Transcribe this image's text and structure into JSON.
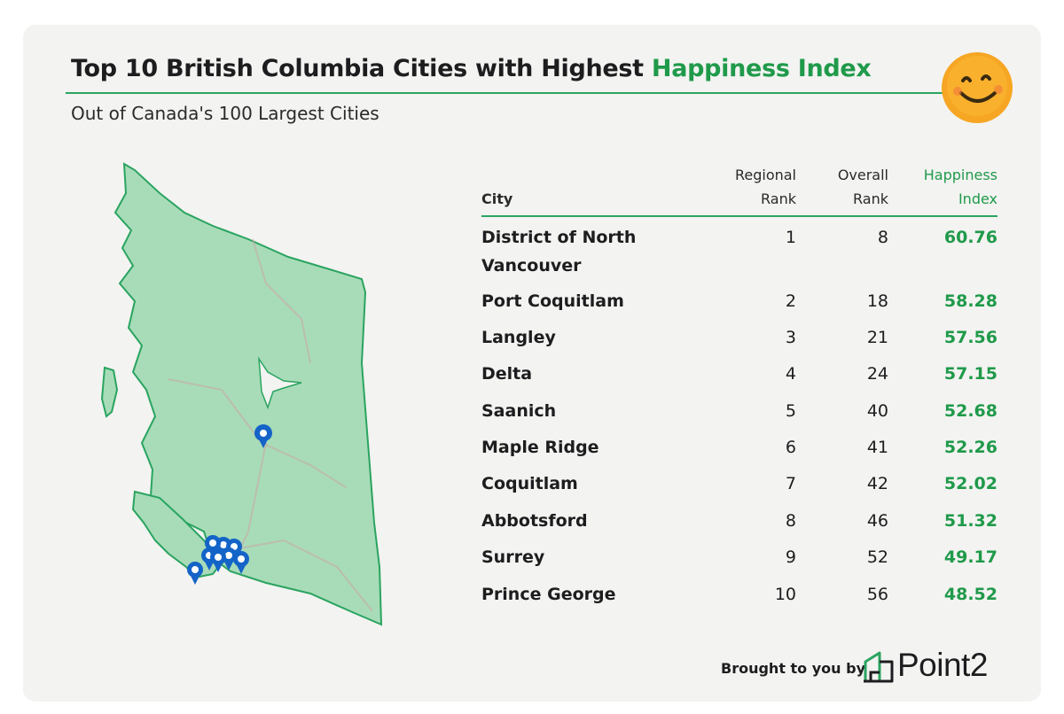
{
  "title_main": "Top 10 British Columbia Cities with Highest",
  "title_accent": "Happiness Index",
  "subtitle": "Out of Canada's 100 Largest Cities",
  "chart_data": {
    "type": "table",
    "title": "Top 10 British Columbia Cities with Highest Happiness Index",
    "subtitle": "Out of Canada's 100 Largest Cities",
    "columns": [
      "City",
      "Regional Rank",
      "Overall Rank",
      "Happiness Index"
    ],
    "column_header_lines": {
      "city": [
        "City"
      ],
      "regional": [
        "Regional",
        "Rank"
      ],
      "overall": [
        "Overall",
        "Rank"
      ],
      "happiness": [
        "Happiness",
        "Index"
      ]
    },
    "rows": [
      {
        "city": "District of North Vancouver",
        "regional": "1",
        "overall": "8",
        "happiness": "60.76"
      },
      {
        "city": "Port Coquitlam",
        "regional": "2",
        "overall": "18",
        "happiness": "58.28"
      },
      {
        "city": "Langley",
        "regional": "3",
        "overall": "21",
        "happiness": "57.56"
      },
      {
        "city": "Delta",
        "regional": "4",
        "overall": "24",
        "happiness": "57.15"
      },
      {
        "city": "Saanich",
        "regional": "5",
        "overall": "40",
        "happiness": "52.68"
      },
      {
        "city": "Maple Ridge",
        "regional": "6",
        "overall": "41",
        "happiness": "52.26"
      },
      {
        "city": "Coquitlam",
        "regional": "7",
        "overall": "42",
        "happiness": "52.02"
      },
      {
        "city": "Abbotsford",
        "regional": "8",
        "overall": "46",
        "happiness": "51.32"
      },
      {
        "city": "Surrey",
        "regional": "9",
        "overall": "52",
        "happiness": "49.17"
      },
      {
        "city": "Prince George",
        "regional": "10",
        "overall": "56",
        "happiness": "48.52"
      }
    ]
  },
  "footer_text": "Brought to you by",
  "brand_name": "Point2",
  "colors": {
    "accent_green": "#1f9a4a",
    "map_fill": "#a8dcb8",
    "map_stroke": "#2aa460",
    "marker_blue": "#1464c8",
    "smiley_face": "#f6a623"
  },
  "icons": [
    "smiley-face-icon",
    "map-pin-icon",
    "point2-logo-icon"
  ]
}
